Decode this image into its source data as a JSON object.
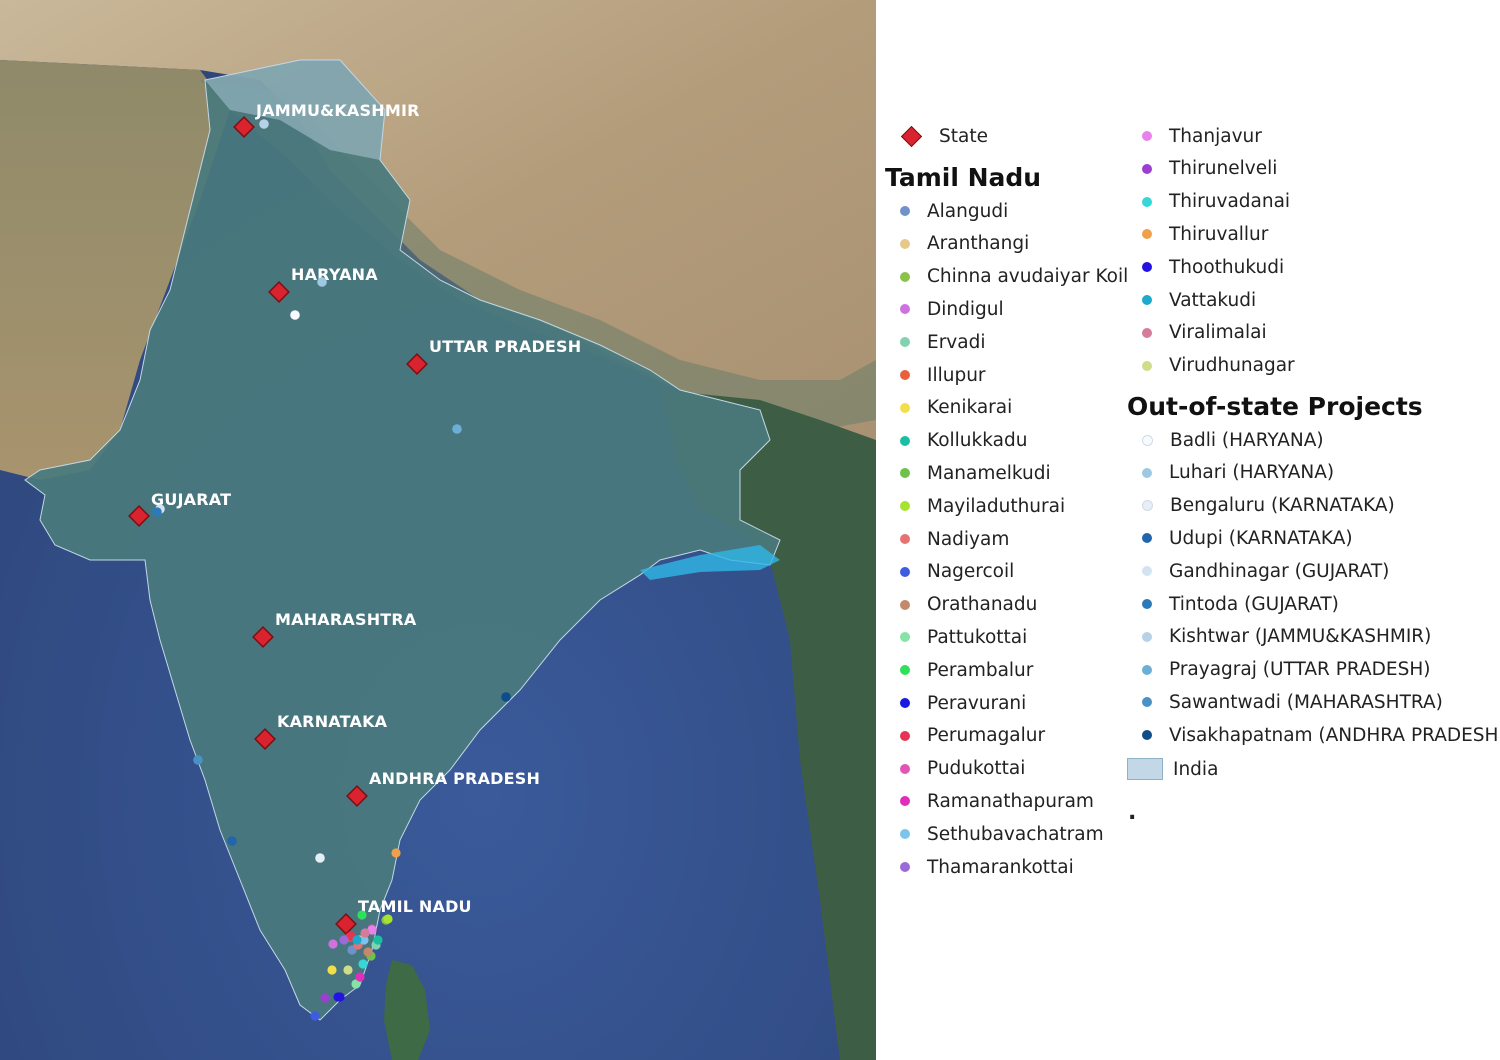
{
  "colors": {
    "state_marker": "#d9232e",
    "state_marker_border": "#7a1014",
    "india_fill": "#c2d8e6",
    "ocean": "#34508a",
    "land_india": "#3f6a6a",
    "himalaya_plateau": "#b9a486"
  },
  "map": {
    "states": [
      {
        "label": "JAMMU&KASHMIR"
      },
      {
        "label": "HARYANA"
      },
      {
        "label": "UTTAR PRADESH"
      },
      {
        "label": "GUJARAT"
      },
      {
        "label": "MAHARASHTRA"
      },
      {
        "label": "KARNATAKA"
      },
      {
        "label": "ANDHRA PRADESH"
      },
      {
        "label": "TAMIL NADU"
      }
    ]
  },
  "legend": {
    "state_label": "State",
    "tamil_nadu_heading": "Tamil Nadu",
    "tamil_nadu": [
      {
        "label": "Alangudi",
        "color": "#6f93c9"
      },
      {
        "label": "Aranthangi",
        "color": "#e6c98a"
      },
      {
        "label": "Chinna avudaiyar Koil",
        "color": "#8bc34a"
      },
      {
        "label": "Dindigul",
        "color": "#d071e0"
      },
      {
        "label": "Ervadi",
        "color": "#7fd3b0"
      },
      {
        "label": "Illupur",
        "color": "#e8613c"
      },
      {
        "label": "Kenikarai",
        "color": "#f2de4a"
      },
      {
        "label": "Kollukkadu",
        "color": "#1bbfa0"
      },
      {
        "label": "Manamelkudi",
        "color": "#6cc24a"
      },
      {
        "label": "Mayiladuthurai",
        "color": "#a6e22e"
      },
      {
        "label": "Nadiyam",
        "color": "#e57373"
      },
      {
        "label": "Nagercoil",
        "color": "#3d5ce0"
      },
      {
        "label": "Orathanadu",
        "color": "#c4896c"
      },
      {
        "label": "Pattukottai",
        "color": "#86e3a5"
      },
      {
        "label": "Perambalur",
        "color": "#2fe05a"
      },
      {
        "label": "Peravurani",
        "color": "#1a1ae0"
      },
      {
        "label": "Perumagalur",
        "color": "#e63355"
      },
      {
        "label": "Pudukottai",
        "color": "#e056b4"
      },
      {
        "label": "Ramanathapuram",
        "color": "#e02dbb"
      },
      {
        "label": "Sethubavachatram",
        "color": "#7cc4ec"
      },
      {
        "label": "Thamarankottai",
        "color": "#9c6ad8"
      },
      {
        "label": "Thanjavur",
        "color": "#e882ea"
      },
      {
        "label": "Thirunelveli",
        "color": "#9b3fd1"
      },
      {
        "label": "Thiruvadanai",
        "color": "#34d6d6"
      },
      {
        "label": "Thiruvallur",
        "color": "#f0a04a"
      },
      {
        "label": "Thoothukudi",
        "color": "#2412e0"
      },
      {
        "label": "Vattakudi",
        "color": "#1ba9cc"
      },
      {
        "label": "Viralimalai",
        "color": "#d67b9a"
      },
      {
        "label": "Virudhunagar",
        "color": "#cfdc8a"
      }
    ],
    "out_of_state_heading": "Out-of-state Projects",
    "out_of_state": [
      {
        "label": "Badli (HARYANA)",
        "color": "#f7fbff"
      },
      {
        "label": "Luhari (HARYANA)",
        "color": "#9ecae1"
      },
      {
        "label": "Bengaluru (KARNATAKA)",
        "color": "#e6eef7"
      },
      {
        "label": "Udupi (KARNATAKA)",
        "color": "#2166ac"
      },
      {
        "label": "Gandhinagar (GUJARAT)",
        "color": "#d4e3f2"
      },
      {
        "label": "Tintoda (GUJARAT)",
        "color": "#2b7bba"
      },
      {
        "label": "Kishtwar (JAMMU&KASHMIR)",
        "color": "#b7d1e8"
      },
      {
        "label": "Prayagraj (UTTAR PRADESH)",
        "color": "#6baed6"
      },
      {
        "label": "Sawantwadi (MAHARASHTRA)",
        "color": "#4a91c6"
      },
      {
        "label": "Visakhapatnam (ANDHRA PRADESH)",
        "color": "#0f4c8a"
      }
    ],
    "india_label": "India",
    "trailing_mark": "."
  }
}
